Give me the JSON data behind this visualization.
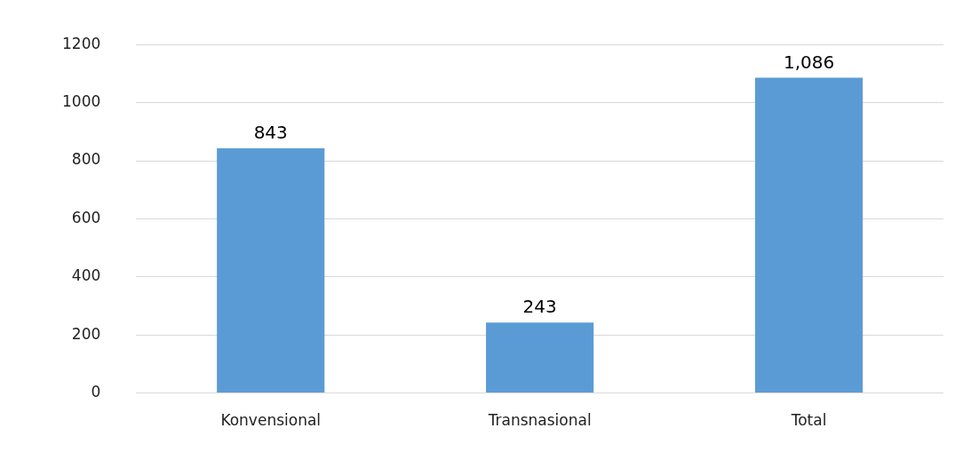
{
  "chart_data": {
    "type": "bar",
    "categories": [
      "Konvensional",
      "Transnasional",
      "Total"
    ],
    "values": [
      843,
      243,
      1086
    ],
    "value_labels": [
      "843",
      "243",
      "1,086"
    ],
    "color": "#5b9bd5",
    "ylim": [
      0,
      1200
    ],
    "yticks": [
      0,
      200,
      400,
      600,
      800,
      1000,
      1200
    ],
    "grid": "y",
    "legend": false
  }
}
